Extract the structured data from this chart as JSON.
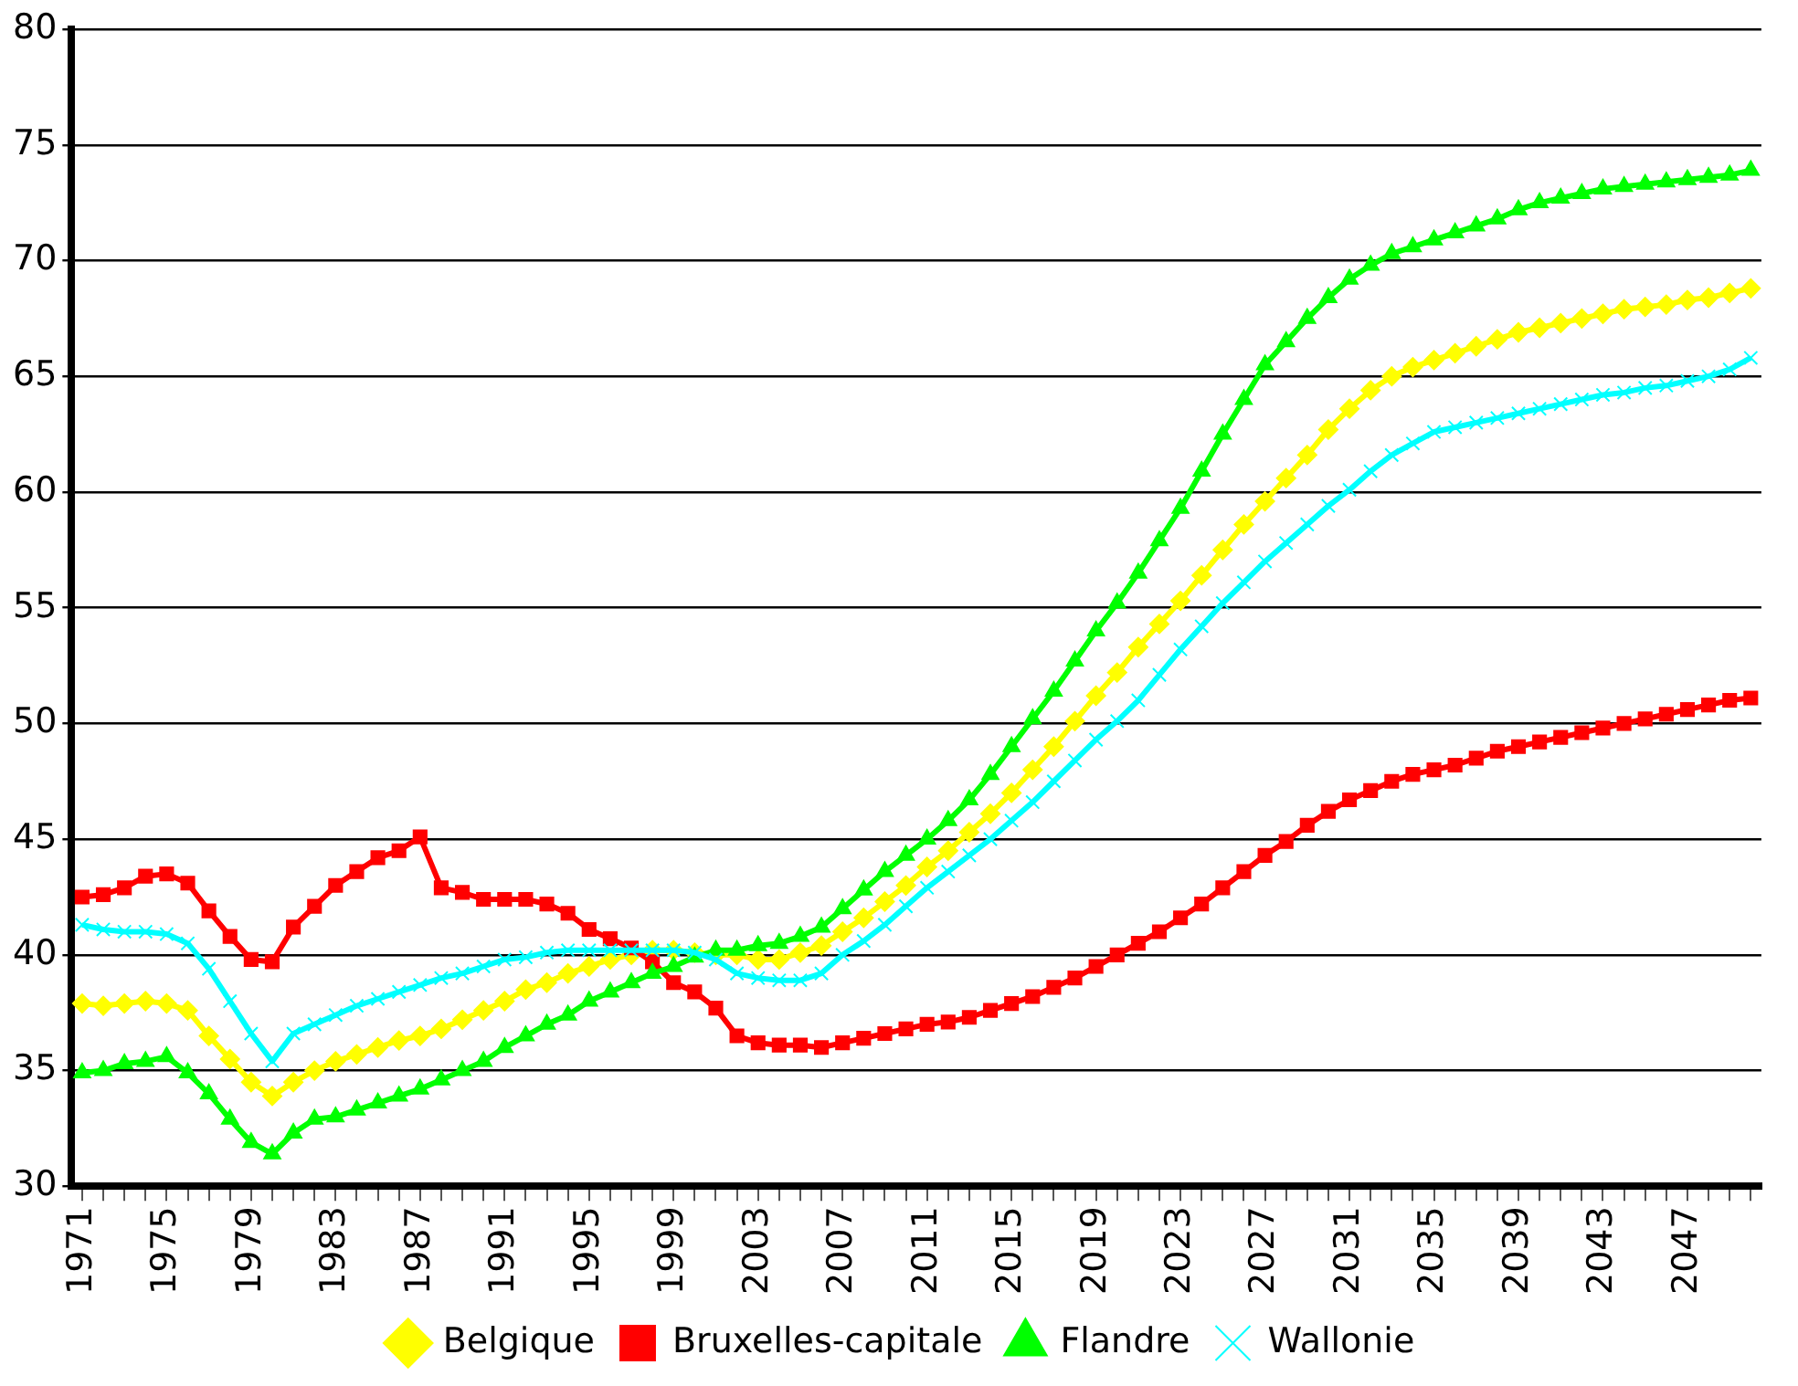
{
  "chart_data": {
    "type": "line",
    "categories": [
      "1971",
      null,
      null,
      null,
      "1975",
      null,
      null,
      null,
      "1979",
      null,
      null,
      null,
      "1983",
      null,
      null,
      null,
      "1987",
      null,
      null,
      null,
      "1991",
      null,
      null,
      null,
      "1995",
      null,
      null,
      null,
      "1999",
      null,
      null,
      null,
      "2003",
      null,
      null,
      null,
      "2007",
      null,
      null,
      null,
      "2011",
      null,
      null,
      null,
      "2015",
      null,
      null,
      null,
      "2019",
      null,
      null,
      null,
      "2023",
      null,
      null,
      null,
      "2027",
      null,
      null,
      null,
      "2031",
      null,
      null,
      null,
      "2035",
      null,
      null,
      null,
      "2039",
      null,
      null,
      null,
      "2043",
      null,
      null,
      null,
      "2047",
      null,
      null,
      null
    ],
    "ylim": [
      30,
      80
    ],
    "yticks": [
      30,
      35,
      40,
      45,
      50,
      55,
      60,
      65,
      70,
      75,
      80
    ],
    "grid": "y",
    "legend": "bottom",
    "line_style": "solid",
    "series": [
      {
        "name": "Belgique",
        "color": "#ffff00",
        "marker": "diamond",
        "values": [
          37.9,
          37.8,
          37.9,
          38,
          37.9,
          37.6,
          36.5,
          35.5,
          34.5,
          33.9,
          34.5,
          35,
          35.4,
          35.7,
          36,
          36.3,
          36.5,
          36.8,
          37.2,
          37.6,
          38,
          38.5,
          38.8,
          39.2,
          39.5,
          39.8,
          40,
          40.2,
          40.2,
          40.1,
          40,
          40,
          39.8,
          39.8,
          40.1,
          40.4,
          41,
          41.6,
          42.3,
          43,
          43.8,
          44.5,
          45.3,
          46.1,
          47,
          48,
          49,
          50.1,
          51.2,
          52.2,
          53.3,
          54.3,
          55.3,
          56.4,
          57.5,
          58.6,
          59.6,
          60.6,
          61.6,
          62.7,
          63.6,
          64.4,
          65,
          65.4,
          65.7,
          66,
          66.3,
          66.6,
          66.9,
          67.1,
          67.3,
          67.5,
          67.7,
          67.9,
          68,
          68.1,
          68.3,
          68.4,
          68.6,
          68.8
        ]
      },
      {
        "name": "Bruxelles-capitale",
        "color": "#ff0000",
        "marker": "square",
        "values": [
          42.5,
          42.6,
          42.9,
          43.4,
          43.5,
          43.1,
          41.9,
          40.8,
          39.8,
          39.7,
          41.2,
          42.1,
          43,
          43.6,
          44.2,
          44.5,
          45.1,
          42.9,
          42.7,
          42.4,
          42.4,
          42.4,
          42.2,
          41.8,
          41.1,
          40.7,
          40.3,
          39.7,
          38.8,
          38.4,
          37.7,
          36.5,
          36.2,
          36.1,
          36.1,
          36,
          36.2,
          36.4,
          36.6,
          36.8,
          37,
          37.1,
          37.3,
          37.6,
          37.9,
          38.2,
          38.6,
          39,
          39.5,
          40,
          40.5,
          41,
          41.6,
          42.2,
          42.9,
          43.6,
          44.3,
          44.9,
          45.6,
          46.2,
          46.7,
          47.1,
          47.5,
          47.8,
          48,
          48.2,
          48.5,
          48.8,
          49,
          49.2,
          49.4,
          49.6,
          49.8,
          50,
          50.2,
          50.4,
          50.6,
          50.8,
          51,
          51.1
        ]
      },
      {
        "name": "Flandre",
        "color": "#00ff00",
        "marker": "triangle",
        "values": [
          34.9,
          35,
          35.3,
          35.4,
          35.6,
          34.9,
          34,
          32.9,
          31.9,
          31.4,
          32.3,
          32.9,
          33,
          33.3,
          33.6,
          33.9,
          34.2,
          34.6,
          35,
          35.4,
          36,
          36.5,
          37,
          37.4,
          38,
          38.4,
          38.8,
          39.2,
          39.5,
          39.9,
          40.2,
          40.2,
          40.4,
          40.5,
          40.8,
          41.2,
          42,
          42.8,
          43.6,
          44.3,
          45,
          45.8,
          46.7,
          47.8,
          49,
          50.2,
          51.4,
          52.7,
          54,
          55.2,
          56.5,
          57.9,
          59.3,
          60.9,
          62.5,
          64,
          65.5,
          66.5,
          67.5,
          68.4,
          69.2,
          69.8,
          70.3,
          70.6,
          70.9,
          71.2,
          71.5,
          71.8,
          72.2,
          72.5,
          72.7,
          72.9,
          73.1,
          73.2,
          73.3,
          73.4,
          73.5,
          73.6,
          73.7,
          73.9
        ]
      },
      {
        "name": "Wallonie",
        "color": "#00ffff",
        "marker": "cross",
        "values": [
          41.3,
          41.1,
          41,
          41,
          40.9,
          40.5,
          39.4,
          38,
          36.6,
          35.4,
          36.6,
          37,
          37.4,
          37.8,
          38.1,
          38.4,
          38.7,
          39,
          39.2,
          39.5,
          39.8,
          39.9,
          40.1,
          40.2,
          40.2,
          40.2,
          40.2,
          40.2,
          40.2,
          40.1,
          39.8,
          39.2,
          39,
          38.9,
          38.9,
          39.2,
          40,
          40.6,
          41.3,
          42.1,
          42.9,
          43.6,
          44.3,
          45,
          45.8,
          46.6,
          47.5,
          48.4,
          49.3,
          50.1,
          51,
          52.1,
          53.2,
          54.2,
          55.2,
          56.1,
          57,
          57.8,
          58.6,
          59.4,
          60.1,
          60.9,
          61.6,
          62.1,
          62.6,
          62.8,
          63,
          63.2,
          63.4,
          63.6,
          63.8,
          64,
          64.2,
          64.3,
          64.5,
          64.6,
          64.8,
          65,
          65.3,
          65.8
        ]
      }
    ]
  }
}
